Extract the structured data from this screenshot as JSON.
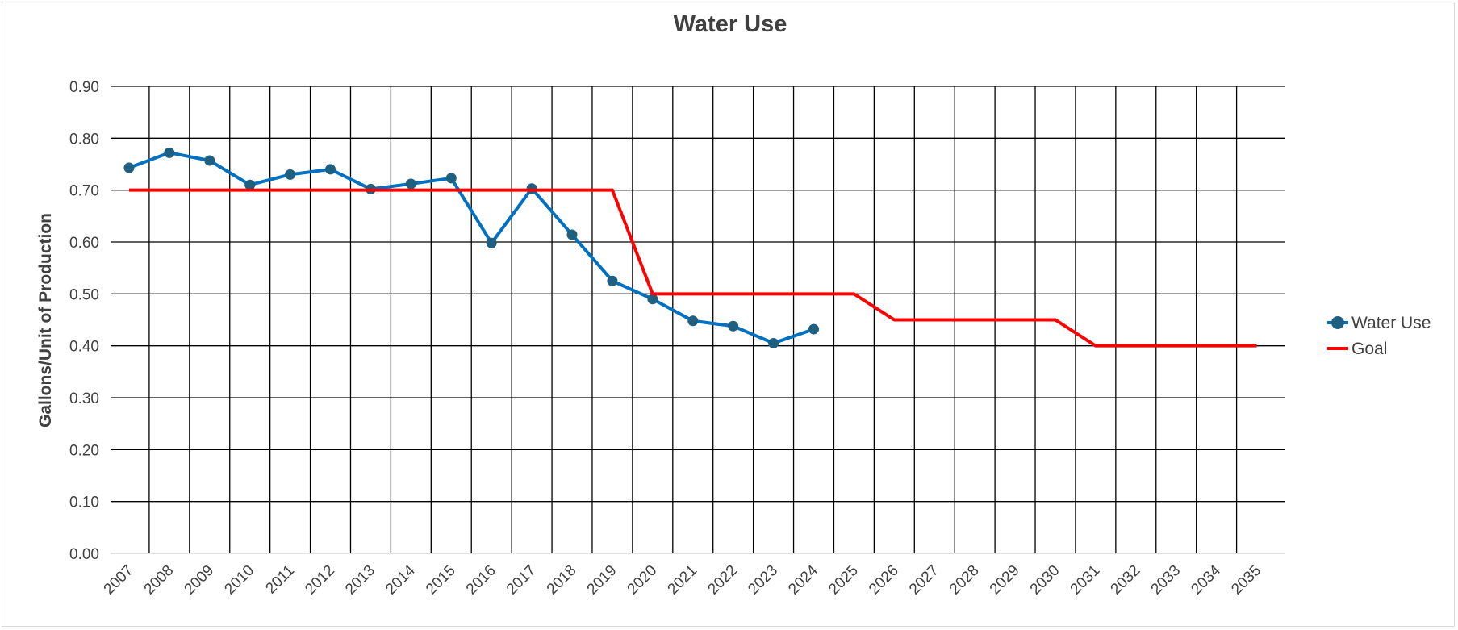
{
  "chart_data": {
    "type": "line",
    "title": "Water Use",
    "xlabel": "",
    "ylabel": "Gallons/Unit of Production",
    "ylim": [
      0,
      0.9
    ],
    "yticks": [
      "0.00",
      "0.10",
      "0.20",
      "0.30",
      "0.40",
      "0.50",
      "0.60",
      "0.70",
      "0.80",
      "0.90"
    ],
    "categories": [
      "2007",
      "2008",
      "2009",
      "2010",
      "2011",
      "2012",
      "2013",
      "2014",
      "2015",
      "2016",
      "2017",
      "2018",
      "2019",
      "2020",
      "2021",
      "2022",
      "2023",
      "2024",
      "2025",
      "2026",
      "2027",
      "2028",
      "2029",
      "2030",
      "2031",
      "2032",
      "2033",
      "2034",
      "2035"
    ],
    "grid": true,
    "legend_position": "right",
    "series": [
      {
        "name": "Water Use",
        "color": "#0070c0",
        "marker_color": "#1f5f7f",
        "marker": "circle",
        "values": [
          0.743,
          0.772,
          0.757,
          0.71,
          0.73,
          0.74,
          0.702,
          0.712,
          0.723,
          0.598,
          0.703,
          0.614,
          0.525,
          0.49,
          0.448,
          0.438,
          0.405,
          0.432,
          null,
          null,
          null,
          null,
          null,
          null,
          null,
          null,
          null,
          null,
          null
        ]
      },
      {
        "name": "Goal",
        "color": "#ff0000",
        "marker": "none",
        "values": [
          0.7,
          0.7,
          0.7,
          0.7,
          0.7,
          0.7,
          0.7,
          0.7,
          0.7,
          0.7,
          0.7,
          0.7,
          0.7,
          0.5,
          0.5,
          0.5,
          0.5,
          0.5,
          0.5,
          0.45,
          0.45,
          0.45,
          0.45,
          0.45,
          0.4,
          0.4,
          0.4,
          0.4,
          0.4
        ]
      }
    ]
  }
}
